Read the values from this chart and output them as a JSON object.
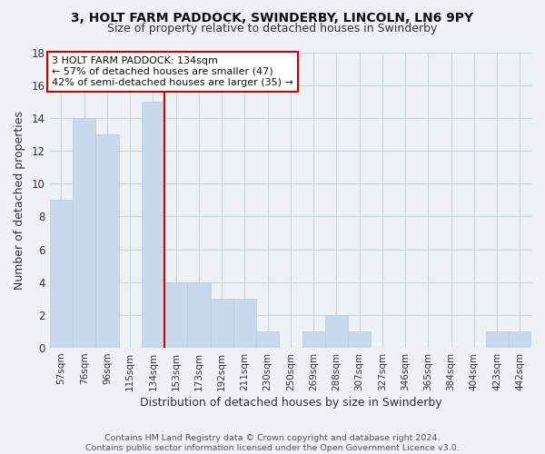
{
  "title": "3, HOLT FARM PADDOCK, SWINDERBY, LINCOLN, LN6 9PY",
  "subtitle": "Size of property relative to detached houses in Swinderby",
  "xlabel": "Distribution of detached houses by size in Swinderby",
  "ylabel": "Number of detached properties",
  "bar_labels": [
    "57sqm",
    "76sqm",
    "96sqm",
    "115sqm",
    "134sqm",
    "153sqm",
    "173sqm",
    "192sqm",
    "211sqm",
    "230sqm",
    "250sqm",
    "269sqm",
    "288sqm",
    "307sqm",
    "327sqm",
    "346sqm",
    "365sqm",
    "384sqm",
    "404sqm",
    "423sqm",
    "442sqm"
  ],
  "bar_values": [
    9,
    14,
    13,
    0,
    15,
    4,
    4,
    3,
    3,
    1,
    0,
    1,
    2,
    1,
    0,
    0,
    0,
    0,
    0,
    1,
    1
  ],
  "bar_color": "#c8d9eb",
  "bar_edge_color": "#b8cce0",
  "highlight_index": 4,
  "annotation_line1": "3 HOLT FARM PADDOCK: 134sqm",
  "annotation_line2": "← 57% of detached houses are smaller (47)",
  "annotation_line3": "42% of semi-detached houses are larger (35) →",
  "annotation_box_color": "#ffffff",
  "annotation_box_edge": "#cc0000",
  "vline_color": "#cc0000",
  "ylim": [
    0,
    18
  ],
  "yticks": [
    0,
    2,
    4,
    6,
    8,
    10,
    12,
    14,
    16,
    18
  ],
  "footer": "Contains HM Land Registry data © Crown copyright and database right 2024.\nContains public sector information licensed under the Open Government Licence v3.0.",
  "grid_color": "#c8d4de",
  "background_color": "#eef2f6",
  "plot_bg_color": "#eef2f6"
}
